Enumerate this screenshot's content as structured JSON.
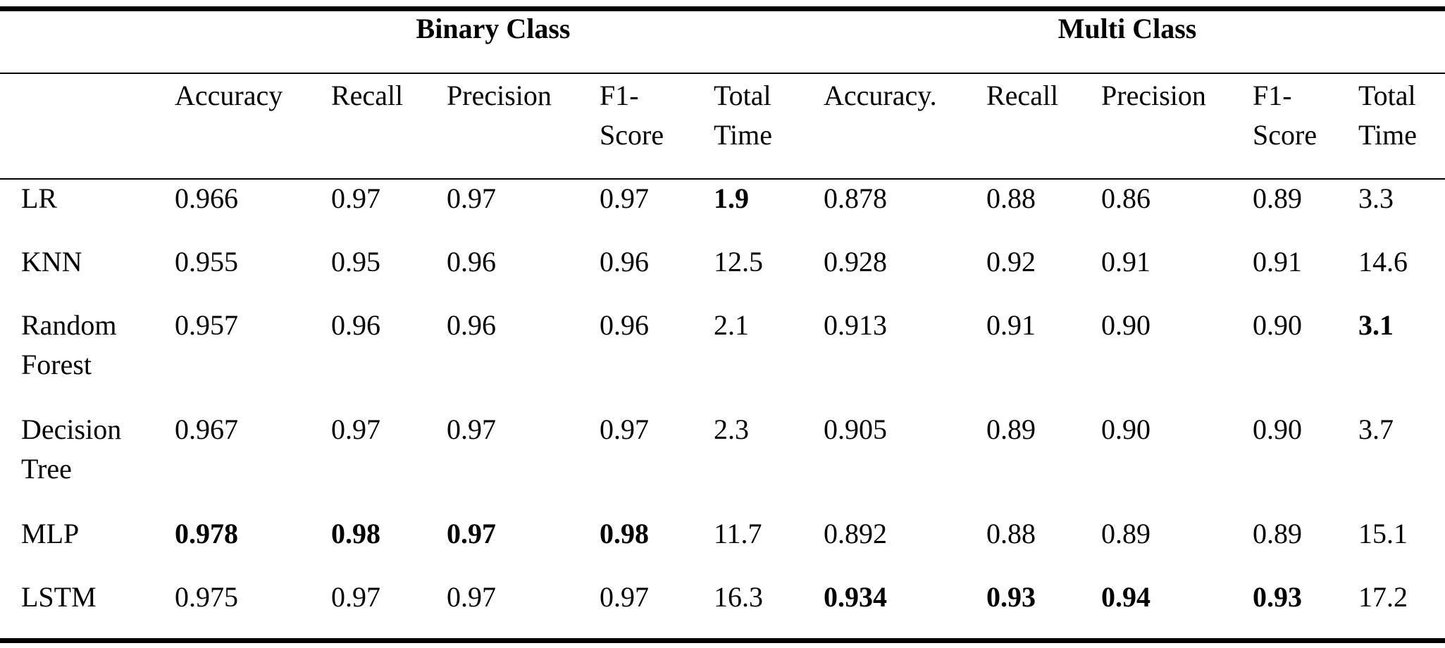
{
  "groups": {
    "binary": "Binary Class",
    "multi": "Multi Class"
  },
  "columns": [
    [
      "Accuracy"
    ],
    [
      "Recall"
    ],
    [
      "Precision"
    ],
    [
      "F1-",
      "Score"
    ],
    [
      "Total",
      "Time"
    ],
    [
      "Accuracy."
    ],
    [
      "Recall"
    ],
    [
      "Precision"
    ],
    [
      "F1-",
      "Score"
    ],
    [
      "Total",
      "Time"
    ]
  ],
  "rows": [
    {
      "model": [
        "LR"
      ],
      "values": [
        "0.966",
        "0.97",
        "0.97",
        "0.97",
        "1.9",
        "0.878",
        "0.88",
        "0.86",
        "0.89",
        "3.3"
      ],
      "bold": [
        false,
        false,
        false,
        false,
        true,
        false,
        false,
        false,
        false,
        false
      ]
    },
    {
      "model": [
        "KNN"
      ],
      "values": [
        "0.955",
        "0.95",
        "0.96",
        "0.96",
        "12.5",
        "0.928",
        "0.92",
        "0.91",
        "0.91",
        "14.6"
      ],
      "bold": [
        false,
        false,
        false,
        false,
        false,
        false,
        false,
        false,
        false,
        false
      ]
    },
    {
      "model": [
        "Random",
        "Forest"
      ],
      "values": [
        "0.957",
        "0.96",
        "0.96",
        "0.96",
        "2.1",
        "0.913",
        "0.91",
        "0.90",
        "0.90",
        "3.1"
      ],
      "bold": [
        false,
        false,
        false,
        false,
        false,
        false,
        false,
        false,
        false,
        true
      ]
    },
    {
      "model": [
        "Decision",
        "Tree"
      ],
      "values": [
        "0.967",
        "0.97",
        "0.97",
        "0.97",
        "2.3",
        "0.905",
        "0.89",
        "0.90",
        "0.90",
        "3.7"
      ],
      "bold": [
        false,
        false,
        false,
        false,
        false,
        false,
        false,
        false,
        false,
        false
      ]
    },
    {
      "model": [
        "MLP"
      ],
      "values": [
        "0.978",
        "0.98",
        "0.97",
        "0.98",
        "11.7",
        "0.892",
        "0.88",
        "0.89",
        "0.89",
        "15.1"
      ],
      "bold": [
        true,
        true,
        true,
        true,
        false,
        false,
        false,
        false,
        false,
        false
      ]
    },
    {
      "model": [
        "LSTM"
      ],
      "values": [
        "0.975",
        "0.97",
        "0.97",
        "0.97",
        "16.3",
        "0.934",
        "0.93",
        "0.94",
        "0.93",
        "17.2"
      ],
      "bold": [
        false,
        false,
        false,
        false,
        false,
        true,
        true,
        true,
        true,
        false
      ]
    }
  ]
}
